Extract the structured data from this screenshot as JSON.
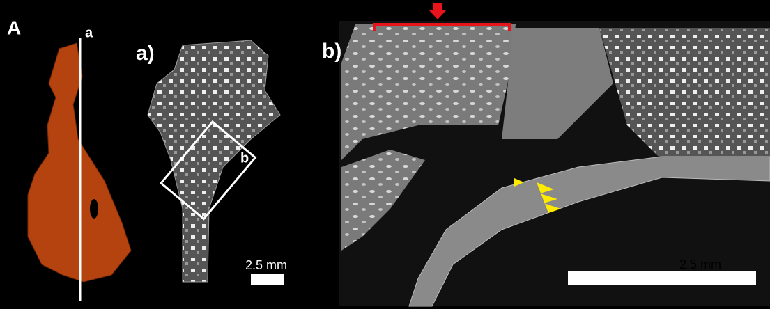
{
  "panel_overview": {
    "label": "A",
    "section_line_label": "a"
  },
  "panel_section": {
    "label": "a)",
    "box_label": "b",
    "scale_bar_label": "2.5 mm"
  },
  "panel_detail": {
    "label": "b)",
    "scale_bar_label": "2.5 mm"
  }
}
